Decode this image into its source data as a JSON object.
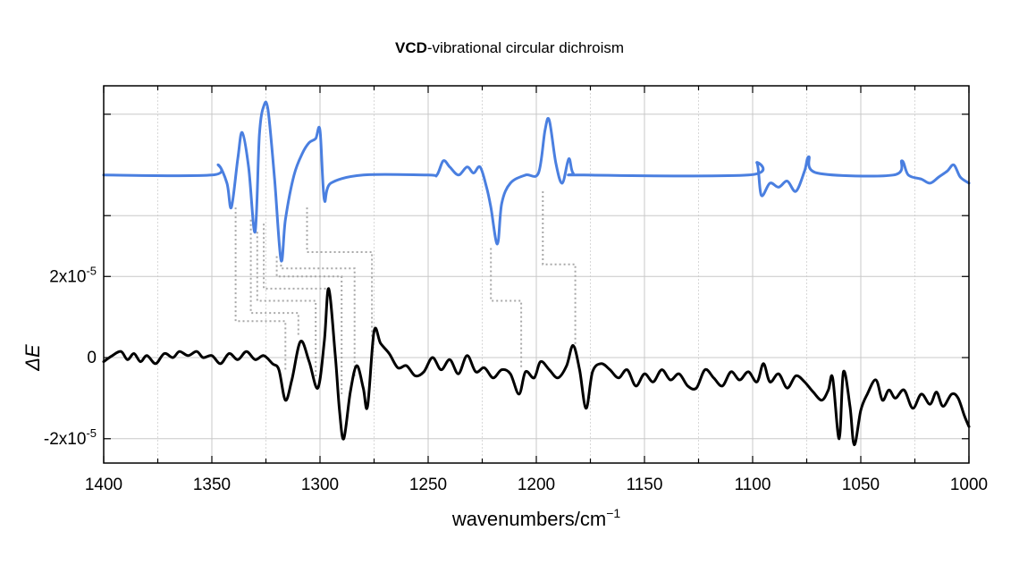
{
  "chart_data": {
    "type": "line",
    "title_bold": "VCD",
    "title_rest": "-vibrational circular dichroism",
    "xlabel": "wavenumbers/cm",
    "xlabel_sup": "−1",
    "ylabel": "ΔE",
    "xlim": [
      1400,
      1000
    ],
    "x_reversed": true,
    "ylim": [
      -2.6e-05,
      6.7e-05
    ],
    "x_ticks": [
      1400,
      1350,
      1300,
      1250,
      1200,
      1150,
      1100,
      1050,
      1000
    ],
    "x_tick_labels": [
      "1400",
      "1350",
      "1300",
      "1250",
      "1200",
      "1150",
      "1100",
      "1050",
      "1000"
    ],
    "y_ticks": [
      -2e-05,
      0,
      2e-05
    ],
    "y_tick_labels": [
      "-2x10",
      "0",
      "2x10"
    ],
    "y_tick_sup": [
      "-5",
      "",
      "-5"
    ],
    "grid": true,
    "series": [
      {
        "role": "calculated",
        "color": "#4a7fe0",
        "baseline": 4.5e-05,
        "points": [
          [
            1400,
            4.5e-05
          ],
          [
            1350,
            4.5e-05
          ],
          [
            1347,
            4.75e-05
          ],
          [
            1343,
            4.3e-05
          ],
          [
            1341,
            3.7e-05
          ],
          [
            1338,
            4.9e-05
          ],
          [
            1336,
            5.55e-05
          ],
          [
            1333,
            4.7e-05
          ],
          [
            1330,
            3.1e-05
          ],
          [
            1328,
            5.5e-05
          ],
          [
            1326,
            6.2e-05
          ],
          [
            1324,
            6.1e-05
          ],
          [
            1321,
            4.4e-05
          ],
          [
            1318,
            2.4e-05
          ],
          [
            1316,
            3.4e-05
          ],
          [
            1312,
            4.5e-05
          ],
          [
            1308,
            5.05e-05
          ],
          [
            1305,
            5.3e-05
          ],
          [
            1302,
            5.4e-05
          ],
          [
            1300,
            5.6e-05
          ],
          [
            1298,
            3.9e-05
          ],
          [
            1295,
            4.3e-05
          ],
          [
            1280,
            4.5e-05
          ],
          [
            1250,
            4.5e-05
          ],
          [
            1246,
            4.5e-05
          ],
          [
            1243,
            4.85e-05
          ],
          [
            1240,
            4.7e-05
          ],
          [
            1236,
            4.5e-05
          ],
          [
            1232,
            4.7e-05
          ],
          [
            1229,
            4.55e-05
          ],
          [
            1226,
            4.7e-05
          ],
          [
            1223,
            4.2e-05
          ],
          [
            1221,
            3.7e-05
          ],
          [
            1218,
            2.8e-05
          ],
          [
            1216,
            3.8e-05
          ],
          [
            1212,
            4.3e-05
          ],
          [
            1205,
            4.5e-05
          ],
          [
            1199,
            4.55e-05
          ],
          [
            1196,
            5.6e-05
          ],
          [
            1194,
            5.85e-05
          ],
          [
            1191,
            4.8e-05
          ],
          [
            1188,
            4.3e-05
          ],
          [
            1185,
            4.9e-05
          ],
          [
            1183,
            4.55e-05
          ],
          [
            1178,
            4.5e-05
          ],
          [
            1102,
            4.5e-05
          ],
          [
            1098,
            4.8e-05
          ],
          [
            1096,
            4e-05
          ],
          [
            1092,
            4.3e-05
          ],
          [
            1088,
            4.2e-05
          ],
          [
            1084,
            4.35e-05
          ],
          [
            1080,
            4.1e-05
          ],
          [
            1076,
            4.6e-05
          ],
          [
            1074,
            4.95e-05
          ],
          [
            1070,
            4.55e-05
          ],
          [
            1035,
            4.5e-05
          ],
          [
            1031,
            4.85e-05
          ],
          [
            1028,
            4.5e-05
          ],
          [
            1022,
            4.4e-05
          ],
          [
            1018,
            4.3e-05
          ],
          [
            1014,
            4.45e-05
          ],
          [
            1010,
            4.6e-05
          ],
          [
            1007,
            4.75e-05
          ],
          [
            1004,
            4.45e-05
          ],
          [
            1000,
            4.3e-05
          ]
        ]
      },
      {
        "role": "measured",
        "color": "#000000",
        "baseline": 0,
        "points": [
          [
            1400,
            -1e-06
          ],
          [
            1396,
            5e-07
          ],
          [
            1392,
            1.5e-06
          ],
          [
            1389,
            -5e-07
          ],
          [
            1386,
            1e-06
          ],
          [
            1383,
            -1e-06
          ],
          [
            1380,
            5e-07
          ],
          [
            1376,
            -1.5e-06
          ],
          [
            1372,
            1e-06
          ],
          [
            1368,
            0.0
          ],
          [
            1365,
            1.5e-06
          ],
          [
            1361,
            5e-07
          ],
          [
            1357,
            1.5e-06
          ],
          [
            1354,
            0.0
          ],
          [
            1350,
            5e-07
          ],
          [
            1346,
            -1.5e-06
          ],
          [
            1342,
            1e-06
          ],
          [
            1338,
            -5e-07
          ],
          [
            1334,
            1.5e-06
          ],
          [
            1330,
            -5e-07
          ],
          [
            1326,
            5e-07
          ],
          [
            1322,
            -1.5e-06
          ],
          [
            1319,
            -3e-06
          ],
          [
            1316,
            -1.05e-05
          ],
          [
            1313,
            -5.5e-06
          ],
          [
            1309,
            4e-06
          ],
          [
            1305,
            -1e-06
          ],
          [
            1301,
            -7.5e-06
          ],
          [
            1298,
            4e-06
          ],
          [
            1296,
            1.7e-05
          ],
          [
            1293,
            1e-06
          ],
          [
            1291,
            -1.3e-05
          ],
          [
            1289,
            -2e-05
          ],
          [
            1286,
            -8.5e-06
          ],
          [
            1283,
            -2e-06
          ],
          [
            1280,
            -7.5e-06
          ],
          [
            1278,
            -1.2e-05
          ],
          [
            1275,
            6.5e-06
          ],
          [
            1272,
            3.5e-06
          ],
          [
            1268,
            1e-06
          ],
          [
            1264,
            -2.5e-06
          ],
          [
            1260,
            -2e-06
          ],
          [
            1256,
            -4.5e-06
          ],
          [
            1252,
            -3.5e-06
          ],
          [
            1248,
            0.0
          ],
          [
            1244,
            -3e-06
          ],
          [
            1240,
            -5e-07
          ],
          [
            1236,
            -4e-06
          ],
          [
            1232,
            5e-07
          ],
          [
            1228,
            -3.5e-06
          ],
          [
            1224,
            -2.5e-06
          ],
          [
            1220,
            -5e-06
          ],
          [
            1216,
            -3e-06
          ],
          [
            1212,
            -4e-06
          ],
          [
            1208,
            -9e-06
          ],
          [
            1205,
            -3.5e-06
          ],
          [
            1201,
            -5e-06
          ],
          [
            1198,
            -1e-06
          ],
          [
            1194,
            -3e-06
          ],
          [
            1190,
            -5e-06
          ],
          [
            1186,
            -2e-06
          ],
          [
            1183,
            3e-06
          ],
          [
            1180,
            -3e-06
          ],
          [
            1177,
            -1.25e-05
          ],
          [
            1174,
            -3.5e-06
          ],
          [
            1170,
            -1.5e-06
          ],
          [
            1166,
            -3e-06
          ],
          [
            1162,
            -5e-06
          ],
          [
            1158,
            -3e-06
          ],
          [
            1154,
            -7e-06
          ],
          [
            1150,
            -4e-06
          ],
          [
            1146,
            -6e-06
          ],
          [
            1142,
            -3e-06
          ],
          [
            1138,
            -5.5e-06
          ],
          [
            1134,
            -4e-06
          ],
          [
            1130,
            -7e-06
          ],
          [
            1126,
            -7.5e-06
          ],
          [
            1122,
            -3e-06
          ],
          [
            1118,
            -5e-06
          ],
          [
            1114,
            -7e-06
          ],
          [
            1110,
            -3.5e-06
          ],
          [
            1106,
            -5.5e-06
          ],
          [
            1102,
            -3.5e-06
          ],
          [
            1098,
            -6e-06
          ],
          [
            1095,
            -1.5e-06
          ],
          [
            1092,
            -6e-06
          ],
          [
            1088,
            -4e-06
          ],
          [
            1084,
            -7.5e-06
          ],
          [
            1080,
            -4.5e-06
          ],
          [
            1076,
            -6e-06
          ],
          [
            1072,
            -8.5e-06
          ],
          [
            1068,
            -1.05e-05
          ],
          [
            1065,
            -8e-06
          ],
          [
            1063,
            -5e-06
          ],
          [
            1060,
            -2e-05
          ],
          [
            1058,
            -3.5e-06
          ],
          [
            1055,
            -1.2e-05
          ],
          [
            1053,
            -2.15e-05
          ],
          [
            1050,
            -1.3e-05
          ],
          [
            1047,
            -9e-06
          ],
          [
            1043,
            -5.5e-06
          ],
          [
            1040,
            -1.05e-05
          ],
          [
            1037,
            -8e-06
          ],
          [
            1034,
            -1e-05
          ],
          [
            1030,
            -8e-06
          ],
          [
            1026,
            -1.25e-05
          ],
          [
            1022,
            -9e-06
          ],
          [
            1018,
            -1.15e-05
          ],
          [
            1015,
            -8.5e-06
          ],
          [
            1012,
            -1.2e-05
          ],
          [
            1008,
            -9e-06
          ],
          [
            1005,
            -1e-05
          ],
          [
            1002,
            -1.45e-05
          ],
          [
            1000,
            -1.7e-05
          ]
        ]
      }
    ],
    "correlation_lines": [
      {
        "points": [
          [
            1339,
            3.7e-05
          ],
          [
            1339,
            9e-06
          ],
          [
            1316,
            9e-06
          ],
          [
            1316,
            -3e-06
          ]
        ]
      },
      {
        "points": [
          [
            1332,
            3.4e-05
          ],
          [
            1332,
            1.1e-05
          ],
          [
            1310,
            1.1e-05
          ],
          [
            1310,
            5e-06
          ]
        ]
      },
      {
        "points": [
          [
            1329,
            3.1e-05
          ],
          [
            1329,
            1.4e-05
          ],
          [
            1302,
            1.4e-05
          ],
          [
            1302,
            -5e-06
          ]
        ]
      },
      {
        "points": [
          [
            1326,
            3.3e-05
          ],
          [
            1326,
            1.7e-05
          ],
          [
            1296,
            1.7e-05
          ]
        ]
      },
      {
        "points": [
          [
            1320,
            2.5e-05
          ],
          [
            1320,
            2e-05
          ],
          [
            1290,
            2e-05
          ],
          [
            1290,
            -9e-06
          ]
        ]
      },
      {
        "points": [
          [
            1318,
            2.4e-05
          ],
          [
            1318,
            2.2e-05
          ],
          [
            1284,
            2.2e-05
          ],
          [
            1284,
            -5e-06
          ]
        ]
      },
      {
        "points": [
          [
            1306,
            3.7e-05
          ],
          [
            1306,
            2.6e-05
          ],
          [
            1276,
            2.6e-05
          ],
          [
            1276,
            5e-06
          ]
        ]
      },
      {
        "points": [
          [
            1221,
            2.7e-05
          ],
          [
            1221,
            1.4e-05
          ],
          [
            1207,
            1.4e-05
          ],
          [
            1207,
            -3e-06
          ]
        ]
      },
      {
        "points": [
          [
            1197,
            4.1e-05
          ],
          [
            1197,
            2.3e-05
          ],
          [
            1182,
            2.3e-05
          ],
          [
            1182,
            2e-06
          ]
        ]
      }
    ],
    "axis_color": "#000000",
    "grid_color": "#c8c8c8",
    "dash_color": "#a8a8a8"
  }
}
